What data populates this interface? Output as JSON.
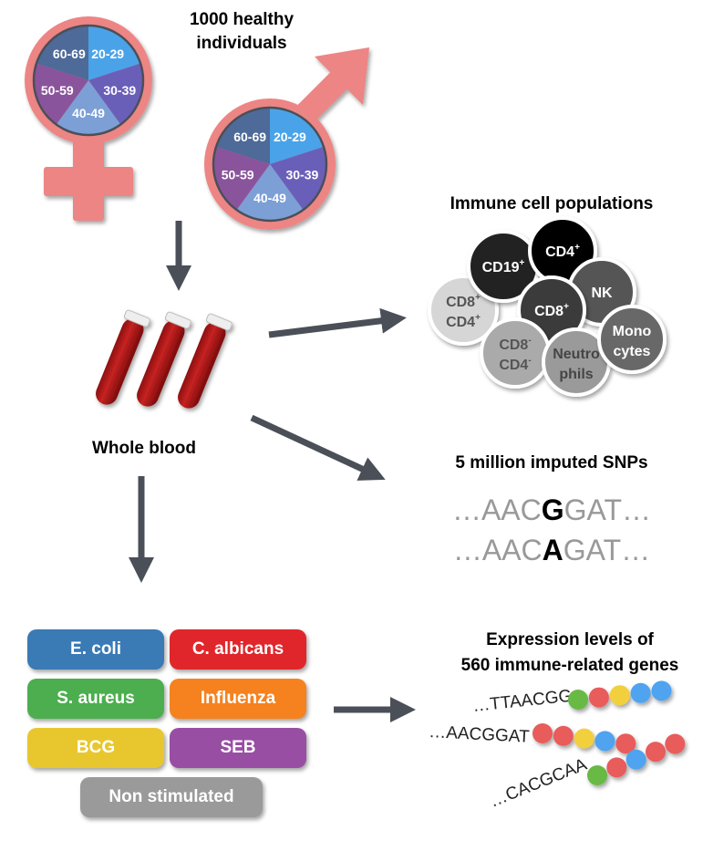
{
  "title": [
    "1000 healthy",
    "individuals"
  ],
  "age_groups": [
    "20-29",
    "30-39",
    "40-49",
    "50-59",
    "60-69"
  ],
  "age_colors": [
    "#4aa3e8",
    "#6a5fb8",
    "#7c9fd6",
    "#8a549c",
    "#4e6a98"
  ],
  "symbol_color": "#ec8584",
  "whole_blood": "Whole blood",
  "immune": {
    "title": "Immune cell populations",
    "cells": [
      {
        "label": [
          "CD19",
          ""
        ],
        "sup": [
          "+",
          ""
        ],
        "color": "#222222",
        "text_color": "#ffffff"
      },
      {
        "label": [
          "CD4",
          ""
        ],
        "sup": [
          "+",
          ""
        ],
        "color": "#000000",
        "text_color": "#ffffff"
      },
      {
        "label": [
          "NK",
          ""
        ],
        "sup": [
          "",
          ""
        ],
        "color": "#555555",
        "text_color": "#ffffff"
      },
      {
        "label": [
          "CD8",
          ""
        ],
        "sup": [
          "+",
          ""
        ],
        "color": "#3a3a3a",
        "text_color": "#ffffff"
      },
      {
        "label": [
          "CD8",
          "CD4"
        ],
        "sup": [
          "+",
          "+"
        ],
        "color": "#d6d6d6",
        "text_color": "#555555"
      },
      {
        "label": [
          "CD8",
          "CD4"
        ],
        "sup": [
          "-",
          "-"
        ],
        "color": "#aaaaaa",
        "text_color": "#555555"
      },
      {
        "label": [
          "Neutro",
          "phils"
        ],
        "sup": [
          "",
          ""
        ],
        "color": "#9a9a9a",
        "text_color": "#444444"
      },
      {
        "label": [
          "Mono",
          "cytes"
        ],
        "sup": [
          "",
          ""
        ],
        "color": "#686868",
        "text_color": "#ffffff"
      }
    ]
  },
  "snps": {
    "title": "5 million imputed SNPs",
    "rows": [
      {
        "prefix": "…AAC",
        "allele": "G",
        "suffix": "GAT…"
      },
      {
        "prefix": "…AAC",
        "allele": "A",
        "suffix": "GAT…"
      }
    ]
  },
  "stimuli": [
    {
      "label": "E. coli",
      "color": "#3a7ab5"
    },
    {
      "label": "C. albicans",
      "color": "#e0262b"
    },
    {
      "label": "S. aureus",
      "color": "#4cae4f"
    },
    {
      "label": "Influenza",
      "color": "#f5821f"
    },
    {
      "label": "BCG",
      "color": "#e8c72e"
    },
    {
      "label": "SEB",
      "color": "#984ea3"
    },
    {
      "label": "Non stimulated",
      "color": "#9a9a9a"
    }
  ],
  "expression": {
    "title": [
      "Expression levels of",
      "560 immune-related genes"
    ],
    "genes": [
      {
        "seq": "…TTAACGG",
        "beads": [
          "#69b944",
          "#e85c5c",
          "#f2cf3c",
          "#4fa3ef",
          "#4fa3ef"
        ]
      },
      {
        "seq": "…AACGGAT",
        "beads": [
          "#e85c5c",
          "#e85c5c",
          "#f2cf3c",
          "#4fa3ef",
          "#e85c5c"
        ]
      },
      {
        "seq": "…CACGCAA",
        "beads": [
          "#69b944",
          "#e85c5c",
          "#4fa3ef",
          "#e85c5c",
          "#e85c5c"
        ]
      }
    ]
  }
}
